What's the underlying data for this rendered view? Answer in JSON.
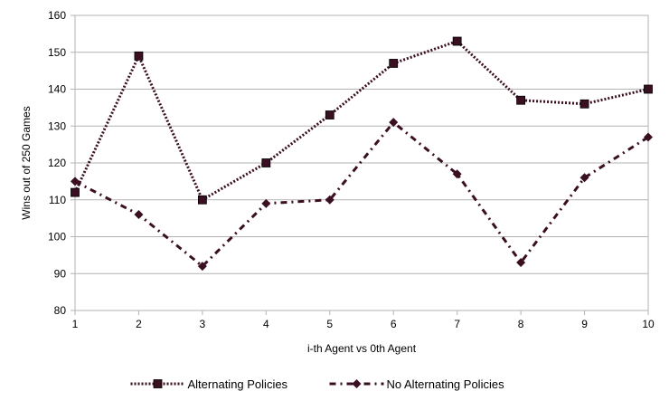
{
  "chart_data": {
    "type": "line",
    "title": "",
    "xlabel": "i-th Agent vs 0th Agent",
    "ylabel": "Wins out of 250 Games",
    "x": [
      1,
      2,
      3,
      4,
      5,
      6,
      7,
      8,
      9,
      10
    ],
    "xlim": [
      1,
      10
    ],
    "ylim": [
      80,
      160
    ],
    "yticks": [
      80,
      90,
      100,
      110,
      120,
      130,
      140,
      150,
      160
    ],
    "grid": "horizontal",
    "legend_position": "bottom",
    "series": [
      {
        "name": "Alternating Policies",
        "values": [
          112,
          149,
          110,
          120,
          133,
          147,
          153,
          137,
          136,
          140
        ],
        "marker": "square",
        "line_style": "dotted",
        "color": "#3b0f22"
      },
      {
        "name": "No Alternating Policies",
        "values": [
          115,
          106,
          92,
          109,
          110,
          131,
          117,
          93,
          116,
          127
        ],
        "marker": "diamond",
        "line_style": "dash-dot",
        "color": "#3b0f22"
      }
    ]
  }
}
